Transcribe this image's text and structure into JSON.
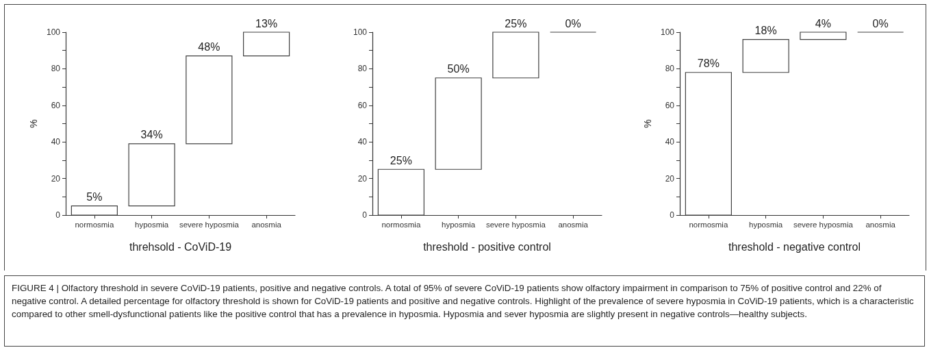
{
  "chart_data": [
    {
      "type": "bar",
      "xlabel": "threhsold - CoViD-19",
      "ylabel": "%",
      "categories": [
        "normosmia",
        "hyposmia",
        "severe hyposmia",
        "anosmia"
      ],
      "base": [
        0,
        5,
        39,
        87
      ],
      "color": "#ffffff",
      "values": [
        5,
        34,
        48,
        13
      ],
      "value_labels": [
        "5%",
        "34%",
        "48%",
        "13%"
      ],
      "ylim": [
        0,
        100
      ],
      "yticks": [
        0,
        {
          "value": 10,
          "label": null
        },
        20,
        {
          "value": 30,
          "label": null
        },
        40,
        {
          "value": 50,
          "label": null
        },
        60,
        {
          "value": 70,
          "label": null
        },
        80,
        {
          "value": 90,
          "label": null
        },
        100
      ],
      "annotations": [
        "FIGURE 4 | Olfactory threshold in severe CoViD-19 patients, positive and negative controls. A total of 95% of severe CoViD-19 patients show olfactory impairment in comparison to 75% of positive control and 22% of negative control. A detailed percentage for olfactory threshold is shown for CoViD-19 patients and positive and negative controls. Highlight of the prevalence of severe hyposmia in CoViD-19 patients, which is a characteristic compared to other smell-dysfunctional patients like the positive control that has a prevalence in hyposmia. Hyposmia and sever hyposmia are slightly present in negative controls—healthy subjects."
      ]
    },
    {
      "type": "bar",
      "xlabel": "threshold - positive control",
      "categories": [
        "normosmia",
        "hyposmia",
        "severe hyposmia",
        "anosmia"
      ],
      "base": [
        0,
        25,
        75,
        100
      ],
      "colors": [
        "#ffffff",
        "#ffffff",
        "#ffffff",
        "#404040"
      ],
      "values": [
        25,
        50,
        25,
        0
      ],
      "value_labels": [
        "25%",
        "50%",
        "25%",
        "0%"
      ],
      "ylim": [
        0,
        100
      ],
      "yticks": [
        0,
        {
          "value": 10,
          "label": null
        },
        20,
        {
          "value": 30,
          "label": null
        },
        40,
        {
          "value": 50,
          "label": null
        },
        60,
        {
          "value": 70,
          "label": null
        },
        80,
        {
          "value": 90,
          "label": null
        },
        100
      ]
    },
    {
      "type": "bar",
      "xlabel": "threshold - negative control",
      "ylabel": "%",
      "categories": [
        "normosmia",
        "hyposmia",
        "severe hyposmia",
        "anosmia"
      ],
      "base": [
        0,
        78,
        96,
        100
      ],
      "colors": [
        "#ffffff",
        "#ffffff",
        "#ffffff",
        "#404040"
      ],
      "values": [
        78,
        18,
        4,
        0
      ],
      "value_labels": [
        "78%",
        "18%",
        "4%",
        "0%"
      ],
      "ylim": [
        0,
        100
      ],
      "yticks": [
        0,
        {
          "value": 10,
          "label": null
        },
        20,
        {
          "value": 30,
          "label": null
        },
        40,
        {
          "value": 50,
          "label": null
        },
        60,
        {
          "value": 70,
          "label": null
        },
        80,
        {
          "value": 90,
          "label": null
        },
        100
      ]
    }
  ]
}
